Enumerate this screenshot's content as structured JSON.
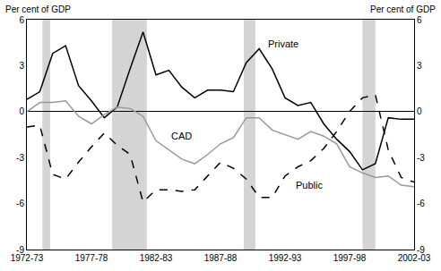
{
  "chart_data": {
    "type": "line",
    "ylabel": "Per cent of GDP",
    "y2label": "Per cent of GDP",
    "categories": [
      "1972-73",
      null,
      null,
      null,
      null,
      "1977-78",
      null,
      null,
      null,
      null,
      "1982-83",
      null,
      null,
      null,
      null,
      "1987-88",
      null,
      null,
      null,
      null,
      "1992-93",
      null,
      null,
      null,
      null,
      "1997-98",
      null,
      null,
      null,
      null,
      "2002-03"
    ],
    "series": [
      {
        "name": "Private",
        "color": "#000000",
        "line_style": "solid",
        "values": [
          0.8,
          1.3,
          3.8,
          4.3,
          1.7,
          0.7,
          -0.4,
          0.3,
          2.8,
          5.2,
          2.4,
          2.7,
          1.6,
          0.9,
          1.4,
          1.4,
          1.3,
          3.2,
          4.1,
          2.8,
          0.9,
          0.4,
          0.6,
          -0.8,
          -1.8,
          -2.6,
          -3.8,
          -3.4,
          -0.4,
          -0.5,
          -0.5
        ]
      },
      {
        "name": "CAD",
        "color": "#999999",
        "line_style": "solid",
        "values": [
          0.0,
          0.6,
          0.6,
          0.7,
          -0.3,
          -0.8,
          -0.2,
          0.3,
          0.2,
          -0.3,
          -1.9,
          -2.5,
          -3.1,
          -3.4,
          -2.8,
          -2.1,
          -1.7,
          -0.4,
          -0.4,
          -1.2,
          -1.5,
          -1.8,
          -1.3,
          -1.6,
          -2.1,
          -3.6,
          -4.0,
          -4.3,
          -4.2,
          -4.8,
          -4.9
        ]
      },
      {
        "name": "Public",
        "color": "#000000",
        "line_style": "dash",
        "values": [
          -1.0,
          -0.9,
          -4.1,
          -4.4,
          -3.3,
          -2.3,
          -1.4,
          -2.2,
          -2.8,
          -5.9,
          -5.1,
          -5.1,
          -5.2,
          -5.1,
          -4.2,
          -3.3,
          -3.7,
          -4.4,
          -5.6,
          -5.6,
          -4.2,
          -3.6,
          -3.2,
          -2.4,
          -1.3,
          0.0,
          0.9,
          1.1,
          -2.5,
          -4.3,
          -4.6
        ]
      }
    ],
    "shaded_periods": [
      {
        "start": 1.2,
        "end": 1.8
      },
      {
        "start": 6.6,
        "end": 9.3
      },
      {
        "start": 16.8,
        "end": 17.7
      },
      {
        "start": 26.0,
        "end": 27.0
      }
    ],
    "ylim": [
      -9,
      6
    ],
    "yticks": [
      -9,
      -6,
      -3,
      0,
      3,
      6
    ],
    "y2lim": [
      -9,
      6
    ],
    "y2ticks": [
      -9,
      -6,
      -3,
      0,
      3,
      6
    ],
    "grid": false
  }
}
